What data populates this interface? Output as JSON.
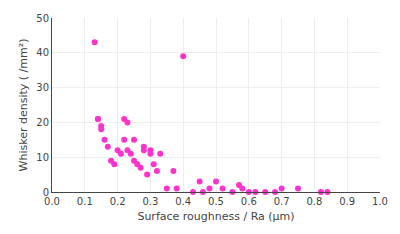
{
  "chart_data": {
    "type": "scatter",
    "x": [
      0.13,
      0.14,
      0.14,
      0.15,
      0.15,
      0.16,
      0.17,
      0.18,
      0.19,
      0.2,
      0.21,
      0.22,
      0.22,
      0.23,
      0.23,
      0.24,
      0.25,
      0.25,
      0.26,
      0.27,
      0.28,
      0.28,
      0.29,
      0.3,
      0.3,
      0.31,
      0.32,
      0.33,
      0.35,
      0.37,
      0.38,
      0.4,
      0.43,
      0.45,
      0.46,
      0.48,
      0.5,
      0.52,
      0.55,
      0.57,
      0.58,
      0.6,
      0.62,
      0.65,
      0.68,
      0.7,
      0.75,
      0.82,
      0.84
    ],
    "values": [
      43,
      21,
      21,
      19,
      18,
      15,
      13,
      9,
      8,
      12,
      11,
      15,
      21,
      12,
      20,
      11,
      15,
      9,
      8,
      7,
      12,
      13,
      5,
      11,
      12,
      8,
      6,
      11,
      1,
      6,
      1,
      39,
      0,
      3,
      0,
      1,
      3,
      1,
      0,
      2,
      1,
      0,
      0,
      0,
      0,
      1,
      1,
      0,
      0
    ],
    "color": "#FF33CC",
    "xlabel": "Surface roughness / Ra (μm)",
    "ylabel": "Whisker density ( /mm²)",
    "xlim": [
      0.0,
      1.0
    ],
    "ylim": [
      0,
      50
    ],
    "xticks": [
      {
        "value": 0.0,
        "label": "0.0"
      },
      0.1,
      0.2,
      0.3,
      0.4,
      0.5,
      0.6,
      0.7,
      0.8,
      0.9,
      {
        "value": 1.0,
        "label": "1.0"
      }
    ],
    "yticks": [
      0,
      10,
      20,
      30,
      40,
      50
    ],
    "grid": true
  }
}
